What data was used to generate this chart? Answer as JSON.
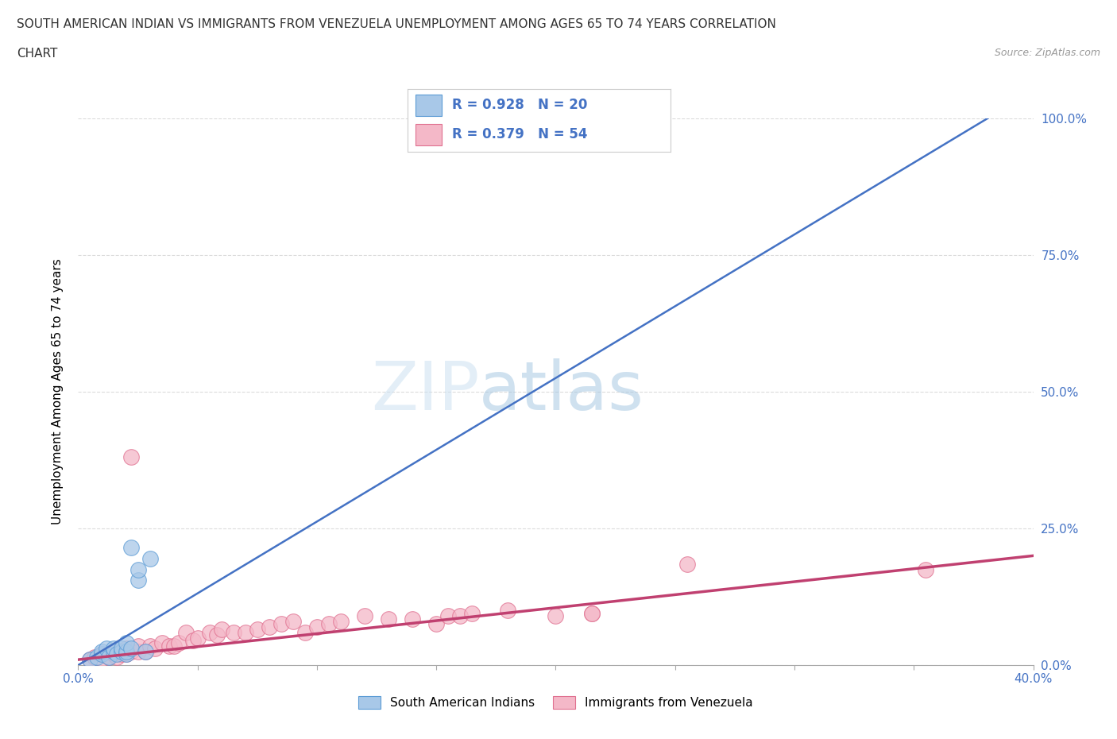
{
  "title_line1": "SOUTH AMERICAN INDIAN VS IMMIGRANTS FROM VENEZUELA UNEMPLOYMENT AMONG AGES 65 TO 74 YEARS CORRELATION",
  "title_line2": "CHART",
  "source": "Source: ZipAtlas.com",
  "ylabel": "Unemployment Among Ages 65 to 74 years",
  "xlim": [
    0.0,
    0.4
  ],
  "ylim": [
    0.0,
    1.0
  ],
  "yticks": [
    0.0,
    0.25,
    0.5,
    0.75,
    1.0
  ],
  "ytick_labels": [
    "0.0%",
    "25.0%",
    "50.0%",
    "75.0%",
    "100.0%"
  ],
  "xtick_positions": [
    0.0,
    0.05,
    0.1,
    0.15,
    0.2,
    0.25,
    0.3,
    0.35,
    0.4
  ],
  "blue_color": "#A8C8E8",
  "blue_edge_color": "#5B9BD5",
  "pink_color": "#F4B8C8",
  "pink_edge_color": "#E07090",
  "blue_line_color": "#4472C4",
  "pink_line_color": "#C04070",
  "legend_r_blue": "R = 0.928",
  "legend_n_blue": "N = 20",
  "legend_r_pink": "R = 0.379",
  "legend_n_pink": "N = 54",
  "legend_label_blue": "South American Indians",
  "legend_label_pink": "Immigrants from Venezuela",
  "watermark_zip": "ZIP",
  "watermark_atlas": "atlas",
  "blue_scatter_x": [
    0.005,
    0.008,
    0.01,
    0.01,
    0.012,
    0.013,
    0.015,
    0.015,
    0.016,
    0.018,
    0.018,
    0.02,
    0.02,
    0.02,
    0.022,
    0.022,
    0.025,
    0.025,
    0.028,
    0.03
  ],
  "blue_scatter_y": [
    0.01,
    0.015,
    0.02,
    0.025,
    0.03,
    0.015,
    0.025,
    0.03,
    0.02,
    0.025,
    0.03,
    0.02,
    0.025,
    0.04,
    0.03,
    0.215,
    0.155,
    0.175,
    0.025,
    0.195
  ],
  "pink_scatter_x": [
    0.005,
    0.007,
    0.01,
    0.01,
    0.012,
    0.013,
    0.015,
    0.015,
    0.016,
    0.018,
    0.018,
    0.02,
    0.02,
    0.02,
    0.022,
    0.022,
    0.025,
    0.025,
    0.028,
    0.03,
    0.032,
    0.035,
    0.038,
    0.04,
    0.042,
    0.045,
    0.048,
    0.05,
    0.055,
    0.058,
    0.06,
    0.065,
    0.07,
    0.075,
    0.08,
    0.085,
    0.09,
    0.095,
    0.1,
    0.105,
    0.11,
    0.12,
    0.13,
    0.14,
    0.15,
    0.155,
    0.16,
    0.165,
    0.18,
    0.2,
    0.215,
    0.215,
    0.255,
    0.355
  ],
  "pink_scatter_y": [
    0.01,
    0.015,
    0.012,
    0.02,
    0.018,
    0.015,
    0.025,
    0.02,
    0.015,
    0.025,
    0.02,
    0.025,
    0.02,
    0.03,
    0.025,
    0.38,
    0.025,
    0.035,
    0.025,
    0.035,
    0.03,
    0.04,
    0.035,
    0.035,
    0.04,
    0.06,
    0.045,
    0.05,
    0.06,
    0.055,
    0.065,
    0.06,
    0.06,
    0.065,
    0.07,
    0.075,
    0.08,
    0.06,
    0.07,
    0.075,
    0.08,
    0.09,
    0.085,
    0.085,
    0.075,
    0.09,
    0.09,
    0.095,
    0.1,
    0.09,
    0.095,
    0.095,
    0.185,
    0.175
  ],
  "background_color": "#FFFFFF",
  "grid_color": "#CCCCCC",
  "title_color": "#333333",
  "tick_color": "#4472C4"
}
